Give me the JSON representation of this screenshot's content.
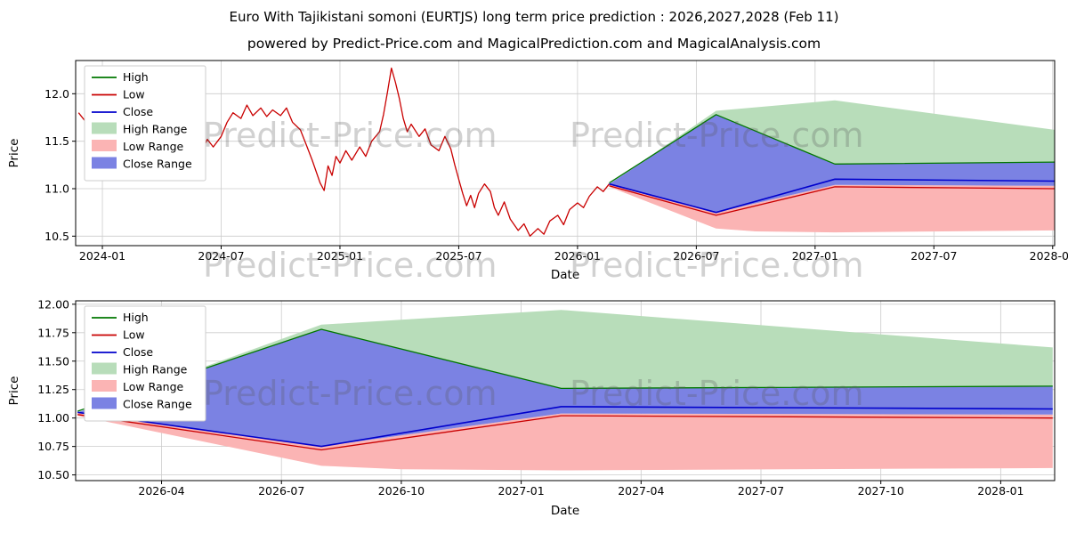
{
  "page": {
    "title": "Euro With Tajikistani somoni (EURTJS) long term price prediction : 2026,2027,2028 (Feb 11)",
    "subtitle": "powered by Predict-Price.com and MagicalPrediction.com and MagicalAnalysis.com",
    "watermark": "Predict-Price.com"
  },
  "colors": {
    "high_line": "#007700",
    "low_line": "#c90000",
    "close_line": "#0000cc",
    "high_range_fill": "#b8ddba",
    "low_range_fill": "#fbb4b4",
    "close_range_fill": "#7b82e3",
    "grid": "#cccccc"
  },
  "chart_data": [
    {
      "type": "line",
      "title": "",
      "xlabel": "Date",
      "ylabel": "Price",
      "x_range": [
        -1.35,
        48.1
      ],
      "y_range": [
        10.4,
        12.35
      ],
      "grid": true,
      "legend_position": "upper-left",
      "x_ticks": [
        {
          "v": 0,
          "label": "2024-01"
        },
        {
          "v": 6,
          "label": "2024-07"
        },
        {
          "v": 12,
          "label": "2025-01"
        },
        {
          "v": 18,
          "label": "2025-07"
        },
        {
          "v": 24,
          "label": "2026-01"
        },
        {
          "v": 30,
          "label": "2026-07"
        },
        {
          "v": 36,
          "label": "2027-01"
        },
        {
          "v": 42,
          "label": "2027-07"
        },
        {
          "v": 48,
          "label": "2028-01"
        }
      ],
      "y_ticks": [
        {
          "v": 10.5,
          "label": "10.5"
        },
        {
          "v": 11.0,
          "label": "11.0"
        },
        {
          "v": 11.5,
          "label": "11.5"
        },
        {
          "v": 12.0,
          "label": "12.0"
        }
      ],
      "legend": [
        {
          "label": "High",
          "type": "line",
          "color": "#007700"
        },
        {
          "label": "Low",
          "type": "line",
          "color": "#c90000"
        },
        {
          "label": "Close",
          "type": "line",
          "color": "#0000cc"
        },
        {
          "label": "High Range",
          "type": "patch",
          "color": "#b8ddba"
        },
        {
          "label": "Low Range",
          "type": "patch",
          "color": "#fbb4b4"
        },
        {
          "label": "Close Range",
          "type": "patch",
          "color": "#7b82e3"
        }
      ],
      "bands": [
        {
          "name": "high-range-band",
          "color": "#b8ddba",
          "upper": [
            [
              25.6,
              11.05
            ],
            [
              31,
              11.82
            ],
            [
              37,
              11.93
            ],
            [
              48.1,
              11.62
            ]
          ],
          "lower": [
            [
              25.6,
              11.05
            ],
            [
              31,
              11.78
            ],
            [
              37,
              11.26
            ],
            [
              48.1,
              11.28
            ]
          ]
        },
        {
          "name": "low-range-band",
          "color": "#fbb4b4",
          "upper": [
            [
              25.6,
              11.05
            ],
            [
              31,
              10.75
            ],
            [
              37,
              11.04
            ],
            [
              48.1,
              11.03
            ]
          ],
          "lower": [
            [
              25.6,
              11.02
            ],
            [
              31,
              10.58
            ],
            [
              33,
              10.55
            ],
            [
              37,
              10.54
            ],
            [
              48.1,
              10.56
            ]
          ]
        },
        {
          "name": "close-range-band",
          "color": "#7b82e3",
          "upper": [
            [
              25.6,
              11.05
            ],
            [
              31,
              11.78
            ],
            [
              37,
              11.26
            ],
            [
              48.1,
              11.28
            ]
          ],
          "lower": [
            [
              25.6,
              11.05
            ],
            [
              31,
              10.75
            ],
            [
              37,
              11.04
            ],
            [
              48.1,
              11.03
            ]
          ]
        }
      ],
      "lines": [
        {
          "name": "history-price-line",
          "color": "#c90000",
          "width": 1.3,
          "points": [
            [
              -1.2,
              11.8
            ],
            [
              -0.9,
              11.72
            ],
            [
              -0.6,
              11.78
            ],
            [
              -0.3,
              11.65
            ],
            [
              0,
              11.73
            ],
            [
              0.3,
              11.6
            ],
            [
              0.6,
              11.68
            ],
            [
              1,
              11.55
            ],
            [
              1.3,
              11.63
            ],
            [
              1.6,
              11.5
            ],
            [
              2,
              11.58
            ],
            [
              2.3,
              11.68
            ],
            [
              2.6,
              11.57
            ],
            [
              3,
              11.7
            ],
            [
              3.3,
              11.6
            ],
            [
              3.6,
              11.67
            ],
            [
              4,
              11.52
            ],
            [
              4.3,
              11.42
            ],
            [
              4.6,
              11.5
            ],
            [
              5,
              11.38
            ],
            [
              5.3,
              11.52
            ],
            [
              5.6,
              11.44
            ],
            [
              6,
              11.55
            ],
            [
              6.3,
              11.7
            ],
            [
              6.6,
              11.8
            ],
            [
              7,
              11.74
            ],
            [
              7.3,
              11.88
            ],
            [
              7.6,
              11.77
            ],
            [
              8,
              11.85
            ],
            [
              8.3,
              11.76
            ],
            [
              8.6,
              11.83
            ],
            [
              9,
              11.77
            ],
            [
              9.3,
              11.85
            ],
            [
              9.6,
              11.7
            ],
            [
              10,
              11.62
            ],
            [
              10.3,
              11.46
            ],
            [
              10.6,
              11.3
            ],
            [
              11,
              11.06
            ],
            [
              11.2,
              10.98
            ],
            [
              11.4,
              11.24
            ],
            [
              11.6,
              11.14
            ],
            [
              11.8,
              11.34
            ],
            [
              12,
              11.27
            ],
            [
              12.3,
              11.4
            ],
            [
              12.6,
              11.3
            ],
            [
              13,
              11.44
            ],
            [
              13.3,
              11.34
            ],
            [
              13.6,
              11.5
            ],
            [
              14,
              11.6
            ],
            [
              14.2,
              11.78
            ],
            [
              14.4,
              12.02
            ],
            [
              14.6,
              12.27
            ],
            [
              14.8,
              12.12
            ],
            [
              15,
              11.95
            ],
            [
              15.2,
              11.74
            ],
            [
              15.4,
              11.6
            ],
            [
              15.6,
              11.68
            ],
            [
              16,
              11.55
            ],
            [
              16.3,
              11.63
            ],
            [
              16.6,
              11.46
            ],
            [
              17,
              11.4
            ],
            [
              17.3,
              11.55
            ],
            [
              17.6,
              11.42
            ],
            [
              17.8,
              11.25
            ],
            [
              18,
              11.1
            ],
            [
              18.2,
              10.95
            ],
            [
              18.4,
              10.82
            ],
            [
              18.6,
              10.93
            ],
            [
              18.8,
              10.8
            ],
            [
              19,
              10.95
            ],
            [
              19.3,
              11.05
            ],
            [
              19.6,
              10.97
            ],
            [
              19.8,
              10.8
            ],
            [
              20,
              10.72
            ],
            [
              20.3,
              10.86
            ],
            [
              20.6,
              10.68
            ],
            [
              21,
              10.56
            ],
            [
              21.3,
              10.63
            ],
            [
              21.6,
              10.5
            ],
            [
              22,
              10.58
            ],
            [
              22.3,
              10.52
            ],
            [
              22.6,
              10.66
            ],
            [
              23,
              10.72
            ],
            [
              23.3,
              10.62
            ],
            [
              23.6,
              10.78
            ],
            [
              24,
              10.85
            ],
            [
              24.3,
              10.8
            ],
            [
              24.6,
              10.92
            ],
            [
              25,
              11.02
            ],
            [
              25.3,
              10.97
            ],
            [
              25.6,
              11.05
            ]
          ]
        },
        {
          "name": "high-forecast-line",
          "color": "#007700",
          "width": 1.3,
          "points": [
            [
              25.6,
              11.06
            ],
            [
              31,
              11.78
            ],
            [
              37,
              11.26
            ],
            [
              48.1,
              11.28
            ]
          ]
        },
        {
          "name": "low-forecast-line",
          "color": "#c90000",
          "width": 1.3,
          "points": [
            [
              25.6,
              11.03
            ],
            [
              31,
              10.72
            ],
            [
              37,
              11.02
            ],
            [
              48.1,
              11.0
            ]
          ]
        },
        {
          "name": "close-forecast-line",
          "color": "#0000cc",
          "width": 1.6,
          "points": [
            [
              25.6,
              11.05
            ],
            [
              31,
              10.75
            ],
            [
              37,
              11.1
            ],
            [
              48.1,
              11.08
            ]
          ]
        }
      ]
    },
    {
      "type": "line",
      "title": "",
      "xlabel": "Date",
      "ylabel": "Price",
      "x_range": [
        -1.15,
        23.35
      ],
      "y_range": [
        10.45,
        12.03
      ],
      "grid": true,
      "legend_position": "upper-left",
      "x_ticks": [
        {
          "v": 1,
          "label": "2026-04"
        },
        {
          "v": 4,
          "label": "2026-07"
        },
        {
          "v": 7,
          "label": "2026-10"
        },
        {
          "v": 10,
          "label": "2027-01"
        },
        {
          "v": 13,
          "label": "2027-04"
        },
        {
          "v": 16,
          "label": "2027-07"
        },
        {
          "v": 19,
          "label": "2027-10"
        },
        {
          "v": 22,
          "label": "2028-01"
        }
      ],
      "y_ticks": [
        {
          "v": 10.5,
          "label": "10.50"
        },
        {
          "v": 10.75,
          "label": "10.75"
        },
        {
          "v": 11.0,
          "label": "11.00"
        },
        {
          "v": 11.25,
          "label": "11.25"
        },
        {
          "v": 11.5,
          "label": "11.50"
        },
        {
          "v": 11.75,
          "label": "11.75"
        },
        {
          "v": 12.0,
          "label": "12.00"
        }
      ],
      "legend": [
        {
          "label": "High",
          "type": "line",
          "color": "#007700"
        },
        {
          "label": "Low",
          "type": "line",
          "color": "#c90000"
        },
        {
          "label": "Close",
          "type": "line",
          "color": "#0000cc"
        },
        {
          "label": "High Range",
          "type": "patch",
          "color": "#b8ddba"
        },
        {
          "label": "Low Range",
          "type": "patch",
          "color": "#fbb4b4"
        },
        {
          "label": "Close Range",
          "type": "patch",
          "color": "#7b82e3"
        }
      ],
      "bands": [
        {
          "name": "high-range-band",
          "color": "#b8ddba",
          "upper": [
            [
              -1.1,
              11.05
            ],
            [
              5,
              11.82
            ],
            [
              11,
              11.95
            ],
            [
              23.3,
              11.62
            ]
          ],
          "lower": [
            [
              -1.1,
              11.05
            ],
            [
              5,
              11.78
            ],
            [
              11,
              11.26
            ],
            [
              23.3,
              11.28
            ]
          ]
        },
        {
          "name": "low-range-band",
          "color": "#fbb4b4",
          "upper": [
            [
              -1.1,
              11.05
            ],
            [
              5,
              10.75
            ],
            [
              11,
              11.04
            ],
            [
              23.3,
              11.03
            ]
          ],
          "lower": [
            [
              -1.1,
              11.02
            ],
            [
              5,
              10.58
            ],
            [
              7,
              10.55
            ],
            [
              11,
              10.54
            ],
            [
              23.3,
              10.56
            ]
          ]
        },
        {
          "name": "close-range-band",
          "color": "#7b82e3",
          "upper": [
            [
              -1.1,
              11.05
            ],
            [
              5,
              11.78
            ],
            [
              11,
              11.26
            ],
            [
              23.3,
              11.28
            ]
          ],
          "lower": [
            [
              -1.1,
              11.05
            ],
            [
              5,
              10.75
            ],
            [
              11,
              11.04
            ],
            [
              23.3,
              11.03
            ]
          ]
        }
      ],
      "lines": [
        {
          "name": "high-forecast-line",
          "color": "#007700",
          "width": 1.3,
          "points": [
            [
              -1.1,
              11.06
            ],
            [
              5,
              11.78
            ],
            [
              11,
              11.26
            ],
            [
              23.3,
              11.28
            ]
          ]
        },
        {
          "name": "low-forecast-line",
          "color": "#c90000",
          "width": 1.3,
          "points": [
            [
              -1.1,
              11.03
            ],
            [
              5,
              10.72
            ],
            [
              11,
              11.02
            ],
            [
              23.3,
              11.0
            ]
          ]
        },
        {
          "name": "close-forecast-line",
          "color": "#0000cc",
          "width": 1.6,
          "points": [
            [
              -1.1,
              11.05
            ],
            [
              5,
              10.75
            ],
            [
              11,
              11.1
            ],
            [
              23.3,
              11.08
            ]
          ]
        }
      ]
    }
  ]
}
